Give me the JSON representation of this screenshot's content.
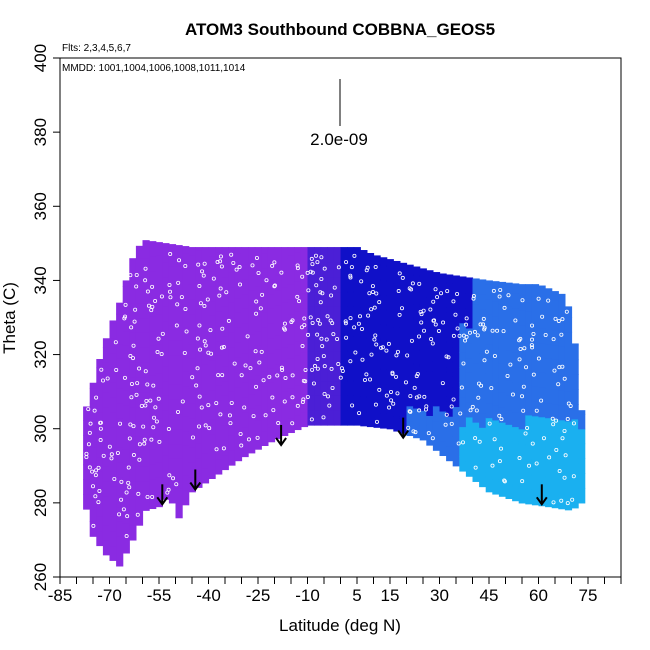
{
  "chart_data": {
    "type": "heatmap",
    "title": "ATOM3 Southbound COBBNA_GEOS5",
    "subtitle_flights": "Flts: 2,3,4,5,6,7",
    "subtitle_dates": "MMDD: 1001,1004,1006,1008,1011,1014",
    "xlabel": "Latitude (deg N)",
    "ylabel": "Theta (C)",
    "xlim": [
      -85,
      85
    ],
    "ylim": [
      260,
      400
    ],
    "x_ticks": [
      -85,
      -70,
      -55,
      -40,
      -25,
      -10,
      5,
      15,
      30,
      45,
      60,
      75
    ],
    "y_ticks": [
      260,
      280,
      300,
      320,
      340,
      360,
      380,
      400
    ],
    "scale_label": "2.0e-09",
    "arrows": [
      {
        "lat": -54,
        "theta": 285
      },
      {
        "lat": -44,
        "theta": 289
      },
      {
        "lat": -18,
        "theta": 301
      },
      {
        "lat": 19,
        "theta": 303
      },
      {
        "lat": 61,
        "theta": 285
      }
    ],
    "colors": {
      "violet": "#8a2be2",
      "indigo": "#4b1fd6",
      "blue": "#1010c8",
      "mid_blue": "#2a6fe8",
      "light_blue": "#1ab0f0"
    }
  }
}
